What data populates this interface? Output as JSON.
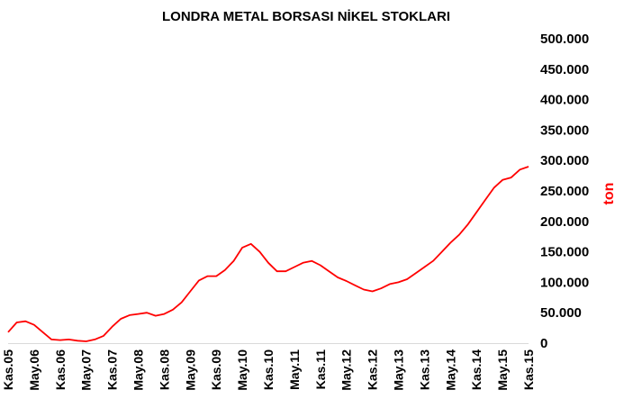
{
  "chart_data": {
    "type": "line",
    "title": "LONDRA METAL BORSASI NİKEL STOKLARI",
    "ylabel": "ton",
    "xlabel": "",
    "y_axis_side": "right",
    "grid": false,
    "legend": "none",
    "ylim": [
      0,
      500000
    ],
    "yticks": [
      0,
      50000,
      100000,
      150000,
      200000,
      250000,
      300000,
      350000,
      400000,
      450000,
      500000
    ],
    "ytick_labels": [
      "0",
      "50.000",
      "100.000",
      "150.000",
      "200.000",
      "250.000",
      "300.000",
      "350.000",
      "400.000",
      "450.000",
      "500.000"
    ],
    "xticks": [
      "Kas.05",
      "May.06",
      "Kas.06",
      "May.07",
      "Kas.07",
      "May.08",
      "Kas.08",
      "May.09",
      "Kas.09",
      "May.10",
      "Kas.10",
      "May.11",
      "Kas.11",
      "May.12",
      "Kas.12",
      "May.13",
      "Kas.13",
      "May.14",
      "Kas.14",
      "May.15",
      "Kas.15"
    ],
    "series": [
      {
        "color": "#ff0000",
        "x": [
          "2005-11",
          "2006-01",
          "2006-03",
          "2006-05",
          "2006-07",
          "2006-09",
          "2006-11",
          "2007-01",
          "2007-03",
          "2007-05",
          "2007-07",
          "2007-09",
          "2007-11",
          "2008-01",
          "2008-03",
          "2008-05",
          "2008-07",
          "2008-09",
          "2008-11",
          "2009-01",
          "2009-03",
          "2009-05",
          "2009-07",
          "2009-09",
          "2009-11",
          "2010-01",
          "2010-03",
          "2010-05",
          "2010-07",
          "2010-09",
          "2010-11",
          "2011-01",
          "2011-03",
          "2011-05",
          "2011-07",
          "2011-09",
          "2011-11",
          "2012-01",
          "2012-03",
          "2012-05",
          "2012-07",
          "2012-09",
          "2012-11",
          "2013-01",
          "2013-03",
          "2013-05",
          "2013-07",
          "2013-09",
          "2013-11",
          "2014-01",
          "2014-03",
          "2014-05",
          "2014-07",
          "2014-09",
          "2014-11",
          "2015-01",
          "2015-03",
          "2015-05",
          "2015-07",
          "2015-09",
          "2015-11"
        ],
        "values": [
          18000,
          34000,
          36000,
          30000,
          18000,
          6000,
          5000,
          6000,
          4000,
          3000,
          6000,
          12000,
          27000,
          40000,
          46000,
          48000,
          50000,
          45000,
          48000,
          55000,
          67000,
          85000,
          103000,
          110000,
          110000,
          120000,
          135000,
          157000,
          163000,
          150000,
          132000,
          118000,
          118000,
          125000,
          132000,
          135000,
          128000,
          118000,
          108000,
          102000,
          95000,
          88000,
          85000,
          90000,
          97000,
          100000,
          105000,
          115000,
          125000,
          135000,
          150000,
          165000,
          178000,
          195000,
          215000,
          235000,
          255000,
          268000,
          272000,
          285000,
          290000
        ]
      }
    ]
  }
}
